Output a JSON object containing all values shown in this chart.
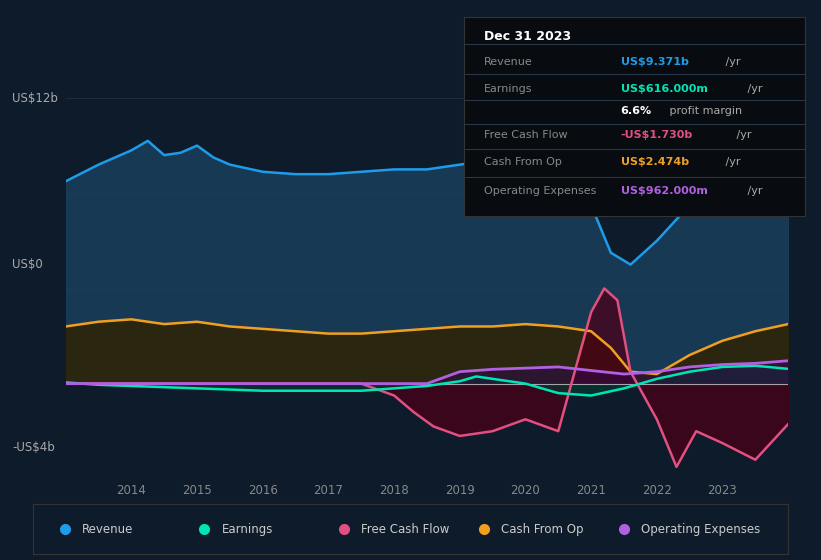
{
  "bg_color": "#0d1b2a",
  "plot_bg_color": "#0d1b2a",
  "ylabel_top": "US$12b",
  "ylabel_zero": "US$0",
  "ylabel_bottom": "-US$4b",
  "info_box": {
    "title": "Dec 31 2023",
    "rows": [
      {
        "label": "Revenue",
        "value": "US$9.371b",
        "suffix": " /yr",
        "value_color": "#1e9be9"
      },
      {
        "label": "Earnings",
        "value": "US$616.000m",
        "suffix": " /yr",
        "value_color": "#00e5b4"
      },
      {
        "label": "",
        "value": "6.6%",
        "suffix": " profit margin",
        "value_color": "#ffffff"
      },
      {
        "label": "Free Cash Flow",
        "value": "-US$1.730b",
        "suffix": " /yr",
        "value_color": "#e05080"
      },
      {
        "label": "Cash From Op",
        "value": "US$2.474b",
        "suffix": " /yr",
        "value_color": "#f0a020"
      },
      {
        "label": "Operating Expenses",
        "value": "US$962.000m",
        "suffix": " /yr",
        "value_color": "#b060e0"
      }
    ]
  },
  "revenue": {
    "x": [
      2013.0,
      2013.5,
      2014.0,
      2014.25,
      2014.5,
      2014.75,
      2015.0,
      2015.25,
      2015.5,
      2016.0,
      2016.5,
      2017.0,
      2017.5,
      2018.0,
      2018.5,
      2019.0,
      2019.5,
      2020.0,
      2020.3,
      2020.6,
      2021.0,
      2021.3,
      2021.6,
      2022.0,
      2022.5,
      2023.0,
      2023.5,
      2024.0
    ],
    "y": [
      8.5,
      9.2,
      9.8,
      10.2,
      9.6,
      9.7,
      10.0,
      9.5,
      9.2,
      8.9,
      8.8,
      8.8,
      8.9,
      9.0,
      9.0,
      9.2,
      9.4,
      9.5,
      9.5,
      9.0,
      7.5,
      5.5,
      5.0,
      6.0,
      7.5,
      8.5,
      8.8,
      9.4
    ],
    "color": "#1e9be9",
    "fill_color": "#1a3f5c",
    "alpha": 0.85
  },
  "cash_from_op": {
    "x": [
      2013.0,
      2013.5,
      2014.0,
      2014.5,
      2015.0,
      2015.5,
      2016.0,
      2016.5,
      2017.0,
      2017.5,
      2018.0,
      2018.5,
      2019.0,
      2019.5,
      2020.0,
      2020.5,
      2021.0,
      2021.3,
      2021.6,
      2022.0,
      2022.5,
      2023.0,
      2023.5,
      2024.0
    ],
    "y": [
      2.4,
      2.6,
      2.7,
      2.5,
      2.6,
      2.4,
      2.3,
      2.2,
      2.1,
      2.1,
      2.2,
      2.3,
      2.4,
      2.4,
      2.5,
      2.4,
      2.2,
      1.5,
      0.5,
      0.4,
      1.2,
      1.8,
      2.2,
      2.5
    ],
    "color": "#f0a020",
    "fill_color": "#2e2408",
    "alpha": 0.9
  },
  "earnings": {
    "x": [
      2013.0,
      2013.5,
      2014.0,
      2014.5,
      2015.0,
      2015.5,
      2016.0,
      2016.5,
      2017.0,
      2017.5,
      2018.0,
      2018.5,
      2019.0,
      2019.25,
      2019.5,
      2020.0,
      2020.5,
      2021.0,
      2021.5,
      2022.0,
      2022.5,
      2023.0,
      2023.5,
      2024.0
    ],
    "y": [
      0.05,
      -0.05,
      -0.1,
      -0.15,
      -0.2,
      -0.25,
      -0.3,
      -0.3,
      -0.3,
      -0.3,
      -0.2,
      -0.1,
      0.1,
      0.3,
      0.2,
      0.0,
      -0.4,
      -0.5,
      -0.2,
      0.2,
      0.5,
      0.7,
      0.75,
      0.62
    ],
    "color": "#00e5b4",
    "fill_color": "#003d2e",
    "alpha": 0.6
  },
  "free_cash_flow": {
    "x": [
      2013.0,
      2013.5,
      2014.0,
      2014.5,
      2015.0,
      2015.5,
      2016.0,
      2016.5,
      2017.0,
      2017.5,
      2018.0,
      2018.3,
      2018.6,
      2019.0,
      2019.5,
      2020.0,
      2020.5,
      2021.0,
      2021.2,
      2021.4,
      2021.6,
      2022.0,
      2022.3,
      2022.6,
      2023.0,
      2023.5,
      2024.0
    ],
    "y": [
      0.0,
      0.0,
      0.0,
      0.0,
      0.0,
      0.0,
      0.0,
      0.0,
      0.0,
      0.0,
      -0.5,
      -1.2,
      -1.8,
      -2.2,
      -2.0,
      -1.5,
      -2.0,
      3.0,
      4.0,
      3.5,
      0.5,
      -1.5,
      -3.5,
      -2.0,
      -2.5,
      -3.2,
      -1.7
    ],
    "color": "#e05080",
    "fill_color": "#4a0018",
    "alpha": 0.75
  },
  "operating_expenses": {
    "x": [
      2013.0,
      2013.5,
      2014.0,
      2014.5,
      2015.0,
      2015.5,
      2016.0,
      2016.5,
      2017.0,
      2017.5,
      2018.0,
      2018.5,
      2019.0,
      2019.5,
      2020.0,
      2020.5,
      2021.0,
      2021.5,
      2022.0,
      2022.5,
      2023.0,
      2023.5,
      2024.0
    ],
    "y": [
      0.0,
      0.0,
      0.0,
      0.0,
      0.0,
      0.0,
      0.0,
      0.0,
      0.0,
      0.0,
      0.0,
      0.0,
      0.5,
      0.6,
      0.65,
      0.7,
      0.55,
      0.4,
      0.5,
      0.7,
      0.8,
      0.85,
      0.96
    ],
    "color": "#b060e0",
    "fill_color": "#2e0850",
    "alpha": 0.5
  },
  "legend_items": [
    {
      "label": "Revenue",
      "color": "#1e9be9"
    },
    {
      "label": "Earnings",
      "color": "#00e5b4"
    },
    {
      "label": "Free Cash Flow",
      "color": "#e05080"
    },
    {
      "label": "Cash From Op",
      "color": "#f0a020"
    },
    {
      "label": "Operating Expenses",
      "color": "#b060e0"
    }
  ],
  "ylim": [
    -4.0,
    12.0
  ],
  "xlim": [
    2013.0,
    2024.0
  ],
  "x_ticks": [
    2014,
    2015,
    2016,
    2017,
    2018,
    2019,
    2020,
    2021,
    2022,
    2023
  ]
}
